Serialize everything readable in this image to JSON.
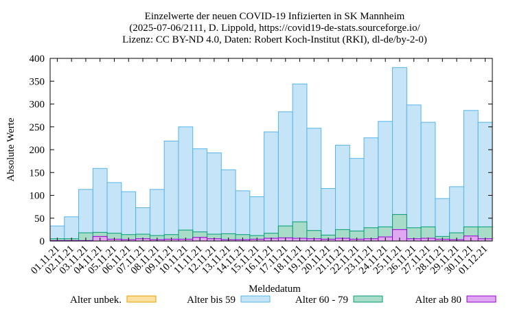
{
  "chart_data": {
    "type": "bar",
    "title": [
      "Einzelwerte der neuen COVID-19 Infizierten in SK Mannheim",
      "(2025-07-06/2111, D. Lippold, https://covid19-de-stats.sourceforge.io/",
      "Lizenz: CC BY-ND 4.0, Daten: Robert Koch-Institut (RKI), dl-de/by-2-0)"
    ],
    "x_label": "Meldedatum",
    "y_label": "Absolute Werte",
    "categories": [
      "01.11.21",
      "02.11.21",
      "03.11.21",
      "04.11.21",
      "05.11.21",
      "06.11.21",
      "07.11.21",
      "08.11.21",
      "09.11.21",
      "10.11.21",
      "11.11.21",
      "12.11.21",
      "13.11.21",
      "14.11.21",
      "15.11.21",
      "16.11.21",
      "17.11.21",
      "18.11.21",
      "19.11.21",
      "20.11.21",
      "21.11.21",
      "22.11.21",
      "23.11.21",
      "24.11.21",
      "25.11.21",
      "26.11.21",
      "27.11.21",
      "28.11.21",
      "29.11.21",
      "30.11.21",
      "01.12.21"
    ],
    "ylim": [
      0,
      400
    ],
    "yticks": [
      0,
      50,
      100,
      150,
      200,
      250,
      300,
      350,
      400
    ],
    "series": [
      {
        "name": "Alter bis 59",
        "color": "#c6e4f7",
        "stroke": "#56b4e9",
        "values": [
          33,
          53,
          113,
          159,
          128,
          108,
          73,
          113,
          219,
          250,
          202,
          193,
          156,
          110,
          97,
          239,
          283,
          344,
          247,
          115,
          210,
          181,
          226,
          262,
          380,
          298,
          260,
          93,
          119,
          286,
          260
        ]
      },
      {
        "name": "Alter 60 - 79",
        "color": "#a8dcc8",
        "stroke": "#009e73",
        "values": [
          5,
          5,
          18,
          19,
          17,
          14,
          15,
          12,
          14,
          24,
          20,
          15,
          16,
          14,
          12,
          17,
          33,
          42,
          23,
          13,
          25,
          22,
          29,
          31,
          58,
          29,
          31,
          10,
          18,
          31,
          31
        ]
      },
      {
        "name": "Alter ab 80",
        "color": "#e0a8f0",
        "stroke": "#9400d3",
        "values": [
          1,
          1,
          1,
          10,
          4,
          3,
          5,
          3,
          4,
          4,
          8,
          5,
          3,
          3,
          4,
          6,
          7,
          6,
          5,
          4,
          6,
          4,
          5,
          9,
          25,
          5,
          6,
          4,
          3,
          11,
          5
        ]
      },
      {
        "name": "Alter unbek.",
        "color": "#fde0a0",
        "stroke": "#e69f00",
        "values": [
          0,
          0,
          0,
          0,
          0,
          0,
          0,
          0,
          0,
          0,
          0,
          0,
          0,
          0,
          0,
          0,
          0,
          0,
          0,
          0,
          0,
          0,
          0,
          0,
          0,
          0,
          0,
          0,
          0,
          0,
          0
        ]
      }
    ],
    "legend_order": [
      3,
      0,
      1,
      2
    ]
  }
}
